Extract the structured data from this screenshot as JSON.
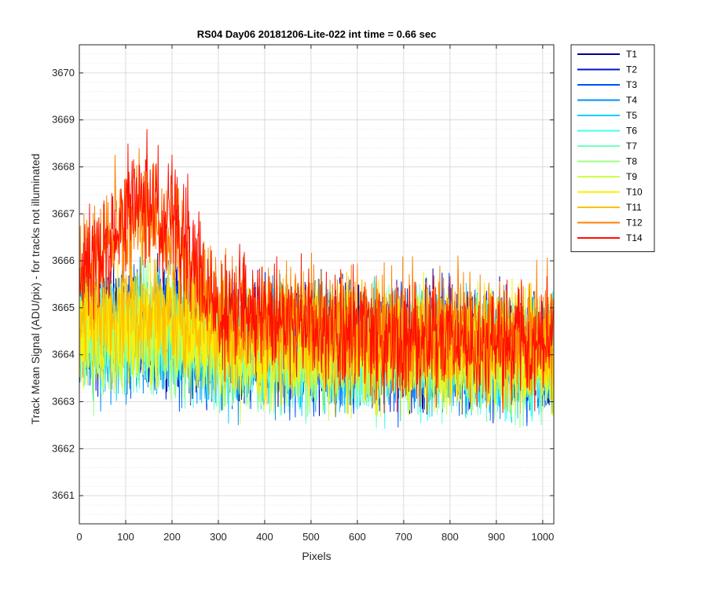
{
  "chart_data": {
    "type": "line",
    "title": "RS04 Day06 20181206-Lite-022 int time = 0.66 sec",
    "xlabel": "Pixels",
    "ylabel": "Track Mean Signal (ADU/pix) - for tracks not illuminated",
    "xlim": [
      0,
      1024
    ],
    "ylim": [
      3660.4,
      3670.6
    ],
    "xticks": [
      0,
      100,
      200,
      300,
      400,
      500,
      600,
      700,
      800,
      900,
      1000
    ],
    "yticks": [
      3661,
      3662,
      3663,
      3664,
      3665,
      3666,
      3667,
      3668,
      3669,
      3670
    ],
    "grid": true,
    "minor_grid": true,
    "legend_position": "outside top-right",
    "approximate_noise_amplitude": 1.2,
    "series": [
      {
        "name": "T1",
        "color": "#00008f",
        "baseline": [
          [
            0,
            3664.6
          ],
          [
            150,
            3664.7
          ],
          [
            300,
            3664.3
          ],
          [
            600,
            3664.2
          ],
          [
            1024,
            3664.1
          ]
        ]
      },
      {
        "name": "T2",
        "color": "#0010d0",
        "baseline": [
          [
            0,
            3664.5
          ],
          [
            150,
            3664.6
          ],
          [
            300,
            3664.2
          ],
          [
            600,
            3664.2
          ],
          [
            1024,
            3664.0
          ]
        ]
      },
      {
        "name": "T3",
        "color": "#0050ff",
        "baseline": [
          [
            0,
            3664.4
          ],
          [
            150,
            3664.5
          ],
          [
            300,
            3664.2
          ],
          [
            600,
            3664.1
          ],
          [
            1024,
            3664.0
          ]
        ]
      },
      {
        "name": "T4",
        "color": "#0090ff",
        "baseline": [
          [
            0,
            3664.4
          ],
          [
            150,
            3664.5
          ],
          [
            300,
            3664.2
          ],
          [
            600,
            3664.1
          ],
          [
            1024,
            3664.0
          ]
        ]
      },
      {
        "name": "T5",
        "color": "#10d0ff",
        "baseline": [
          [
            0,
            3664.3
          ],
          [
            150,
            3664.4
          ],
          [
            300,
            3664.1
          ],
          [
            600,
            3664.1
          ],
          [
            1024,
            3664.0
          ]
        ]
      },
      {
        "name": "T6",
        "color": "#40ffef",
        "baseline": [
          [
            0,
            3664.3
          ],
          [
            150,
            3664.4
          ],
          [
            300,
            3664.1
          ],
          [
            600,
            3664.0
          ],
          [
            1024,
            3663.9
          ]
        ]
      },
      {
        "name": "T7",
        "color": "#70ffbf",
        "baseline": [
          [
            0,
            3664.3
          ],
          [
            150,
            3664.4
          ],
          [
            300,
            3664.1
          ],
          [
            600,
            3664.0
          ],
          [
            1024,
            3663.9
          ]
        ]
      },
      {
        "name": "T8",
        "color": "#9fff80",
        "baseline": [
          [
            0,
            3664.3
          ],
          [
            150,
            3664.5
          ],
          [
            300,
            3664.1
          ],
          [
            600,
            3664.0
          ],
          [
            1024,
            3663.9
          ]
        ]
      },
      {
        "name": "T9",
        "color": "#cfff40",
        "baseline": [
          [
            0,
            3664.4
          ],
          [
            150,
            3664.6
          ],
          [
            300,
            3664.2
          ],
          [
            600,
            3664.1
          ],
          [
            1024,
            3664.0
          ]
        ]
      },
      {
        "name": "T10",
        "color": "#ffef00",
        "baseline": [
          [
            0,
            3664.5
          ],
          [
            150,
            3664.8
          ],
          [
            300,
            3664.3
          ],
          [
            600,
            3664.2
          ],
          [
            1024,
            3664.1
          ]
        ]
      },
      {
        "name": "T11",
        "color": "#ffbf00",
        "baseline": [
          [
            0,
            3664.7
          ],
          [
            150,
            3665.0
          ],
          [
            300,
            3664.4
          ],
          [
            600,
            3664.3
          ],
          [
            1024,
            3664.2
          ]
        ]
      },
      {
        "name": "T12",
        "color": "#ff8000",
        "baseline": [
          [
            0,
            3665.8
          ],
          [
            130,
            3667.2
          ],
          [
            220,
            3666.4
          ],
          [
            300,
            3665.0
          ],
          [
            600,
            3664.6
          ],
          [
            1024,
            3664.4
          ]
        ]
      },
      {
        "name": "T14",
        "color": "#ff1000",
        "baseline": [
          [
            0,
            3665.6
          ],
          [
            130,
            3667.4
          ],
          [
            220,
            3666.6
          ],
          [
            300,
            3665.0
          ],
          [
            600,
            3664.3
          ],
          [
            1024,
            3664.1
          ]
        ]
      }
    ]
  }
}
